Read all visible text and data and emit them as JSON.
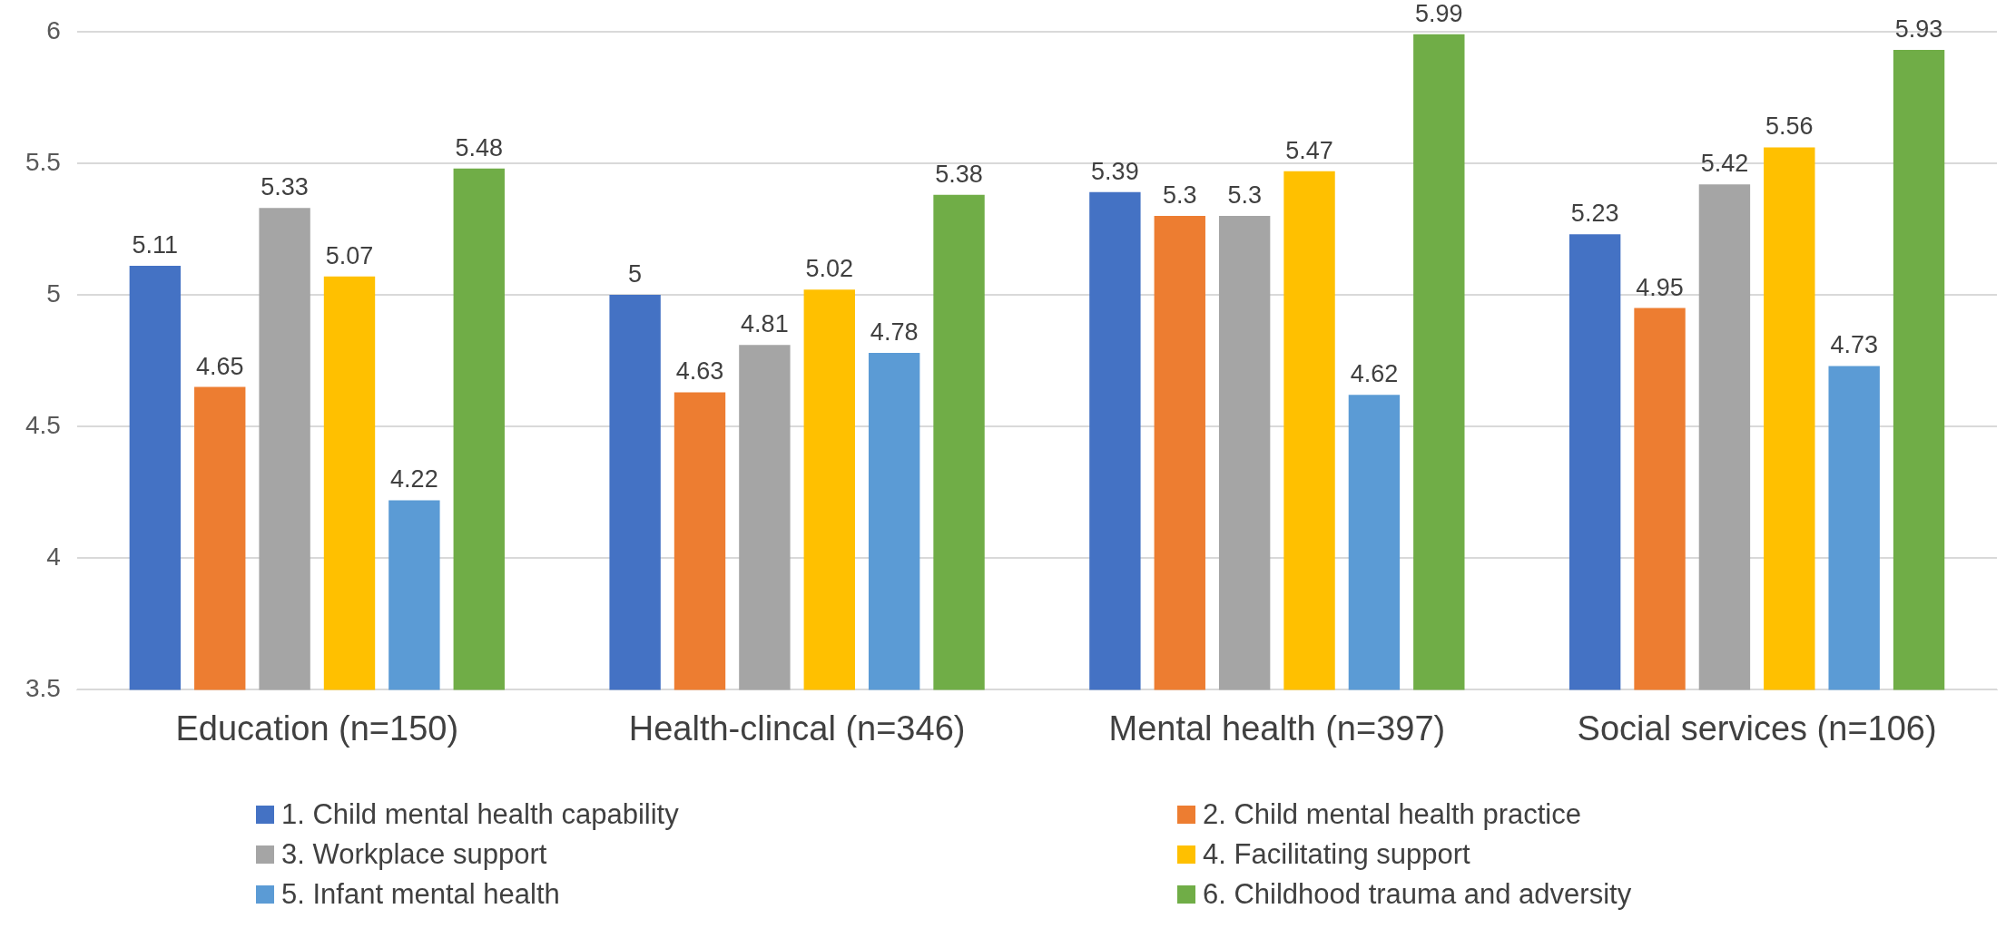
{
  "chart_data": {
    "type": "bar",
    "categories": [
      "Education (n=150)",
      "Health-clincal (n=346)",
      "Mental health (n=397)",
      "Social services (n=106)"
    ],
    "series": [
      {
        "name": "1. Child mental health capability",
        "color": "#4472c4",
        "values": [
          5.11,
          5,
          5.39,
          5.23
        ]
      },
      {
        "name": "2. Child mental health practice",
        "color": "#ed7d31",
        "values": [
          4.65,
          4.63,
          5.3,
          4.95
        ]
      },
      {
        "name": "3. Workplace support",
        "color": "#a5a5a5",
        "values": [
          5.33,
          4.81,
          5.3,
          5.42
        ]
      },
      {
        "name": "4. Facilitating support",
        "color": "#ffc000",
        "values": [
          5.07,
          5.02,
          5.47,
          5.56
        ]
      },
      {
        "name": "5. Infant mental health",
        "color": "#5b9bd5",
        "values": [
          4.22,
          4.78,
          4.62,
          4.73
        ]
      },
      {
        "name": "6. Childhood trauma and adversity",
        "color": "#70ad47",
        "values": [
          5.48,
          5.38,
          5.99,
          5.93
        ]
      }
    ],
    "ylim": [
      3.5,
      6
    ],
    "yticks": [
      3.5,
      4,
      4.5,
      5,
      5.5,
      6
    ],
    "grid": "y",
    "legend": "bottom",
    "data_labels": true
  }
}
